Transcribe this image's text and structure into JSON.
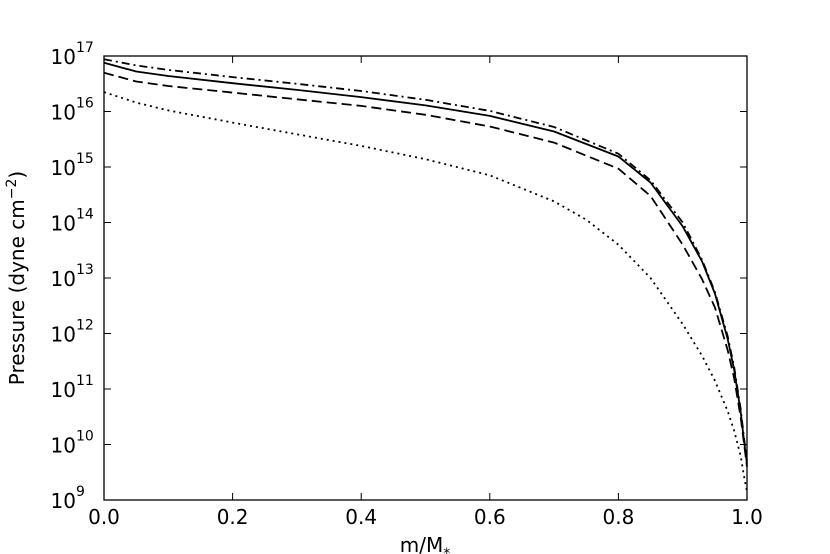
{
  "chart_data": {
    "type": "line",
    "xlabel": "m/M",
    "xlabel_subscript": "*",
    "ylabel": "Pressure (dyne cm",
    "ylabel_superscript": "−2",
    "ylabel_suffix": ")",
    "xlim": [
      0.0,
      1.0
    ],
    "ylim": [
      1000000000.0,
      1e+17
    ],
    "yscale": "log",
    "grid": false,
    "x_ticks": [
      {
        "value": 0.0,
        "label": "0.0"
      },
      {
        "value": 0.2,
        "label": "0.2"
      },
      {
        "value": 0.4,
        "label": "0.4"
      },
      {
        "value": 0.6,
        "label": "0.6"
      },
      {
        "value": 0.8,
        "label": "0.8"
      },
      {
        "value": 1.0,
        "label": "1.0"
      }
    ],
    "y_ticks": [
      {
        "exp": 9,
        "base": "10",
        "sup": "9"
      },
      {
        "exp": 10,
        "base": "10",
        "sup": "10"
      },
      {
        "exp": 11,
        "base": "10",
        "sup": "11"
      },
      {
        "exp": 12,
        "base": "10",
        "sup": "12"
      },
      {
        "exp": 13,
        "base": "10",
        "sup": "13"
      },
      {
        "exp": 14,
        "base": "10",
        "sup": "14"
      },
      {
        "exp": 15,
        "base": "10",
        "sup": "15"
      },
      {
        "exp": 16,
        "base": "10",
        "sup": "16"
      },
      {
        "exp": 17,
        "base": "10",
        "sup": "17"
      }
    ],
    "series": [
      {
        "style": "dashdot",
        "color": "#000000",
        "x": [
          0.0,
          0.05,
          0.1,
          0.2,
          0.3,
          0.4,
          0.5,
          0.6,
          0.7,
          0.8,
          0.85,
          0.9,
          0.93,
          0.95,
          0.97,
          0.98,
          0.99,
          0.995,
          1.0
        ],
        "log10_y": [
          16.94,
          16.83,
          16.75,
          16.62,
          16.5,
          16.37,
          16.21,
          16.01,
          15.72,
          15.24,
          14.76,
          14.0,
          13.33,
          12.75,
          11.95,
          11.4,
          10.65,
          10.15,
          9.7
        ]
      },
      {
        "style": "solid",
        "color": "#000000",
        "x": [
          0.0,
          0.05,
          0.1,
          0.2,
          0.3,
          0.4,
          0.5,
          0.6,
          0.7,
          0.8,
          0.85,
          0.9,
          0.93,
          0.95,
          0.97,
          0.98,
          0.99,
          0.995,
          1.0
        ],
        "log10_y": [
          16.88,
          16.72,
          16.64,
          16.51,
          16.39,
          16.26,
          16.11,
          15.92,
          15.64,
          15.19,
          14.72,
          13.93,
          13.3,
          12.72,
          11.9,
          11.35,
          10.6,
          10.1,
          9.65
        ]
      },
      {
        "style": "dashed",
        "color": "#000000",
        "x": [
          0.0,
          0.05,
          0.1,
          0.2,
          0.3,
          0.4,
          0.5,
          0.6,
          0.7,
          0.8,
          0.85,
          0.9,
          0.93,
          0.95,
          0.97,
          0.98,
          0.99,
          0.995,
          1.0
        ],
        "log10_y": [
          16.7,
          16.54,
          16.46,
          16.34,
          16.22,
          16.1,
          15.94,
          15.73,
          15.44,
          14.97,
          14.48,
          13.6,
          12.98,
          12.47,
          11.7,
          11.2,
          10.5,
          10.05,
          9.6
        ]
      },
      {
        "style": "dotted",
        "color": "#000000",
        "x": [
          0.0,
          0.05,
          0.1,
          0.2,
          0.3,
          0.4,
          0.5,
          0.6,
          0.7,
          0.75,
          0.8,
          0.85,
          0.9,
          0.93,
          0.95,
          0.97,
          0.98,
          0.99,
          0.995,
          1.0
        ],
        "log10_y": [
          16.35,
          16.16,
          16.02,
          15.8,
          15.59,
          15.38,
          15.14,
          14.85,
          14.38,
          14.05,
          13.6,
          13.0,
          12.17,
          11.6,
          11.15,
          10.6,
          10.25,
          9.8,
          9.45,
          9.15
        ]
      }
    ]
  }
}
